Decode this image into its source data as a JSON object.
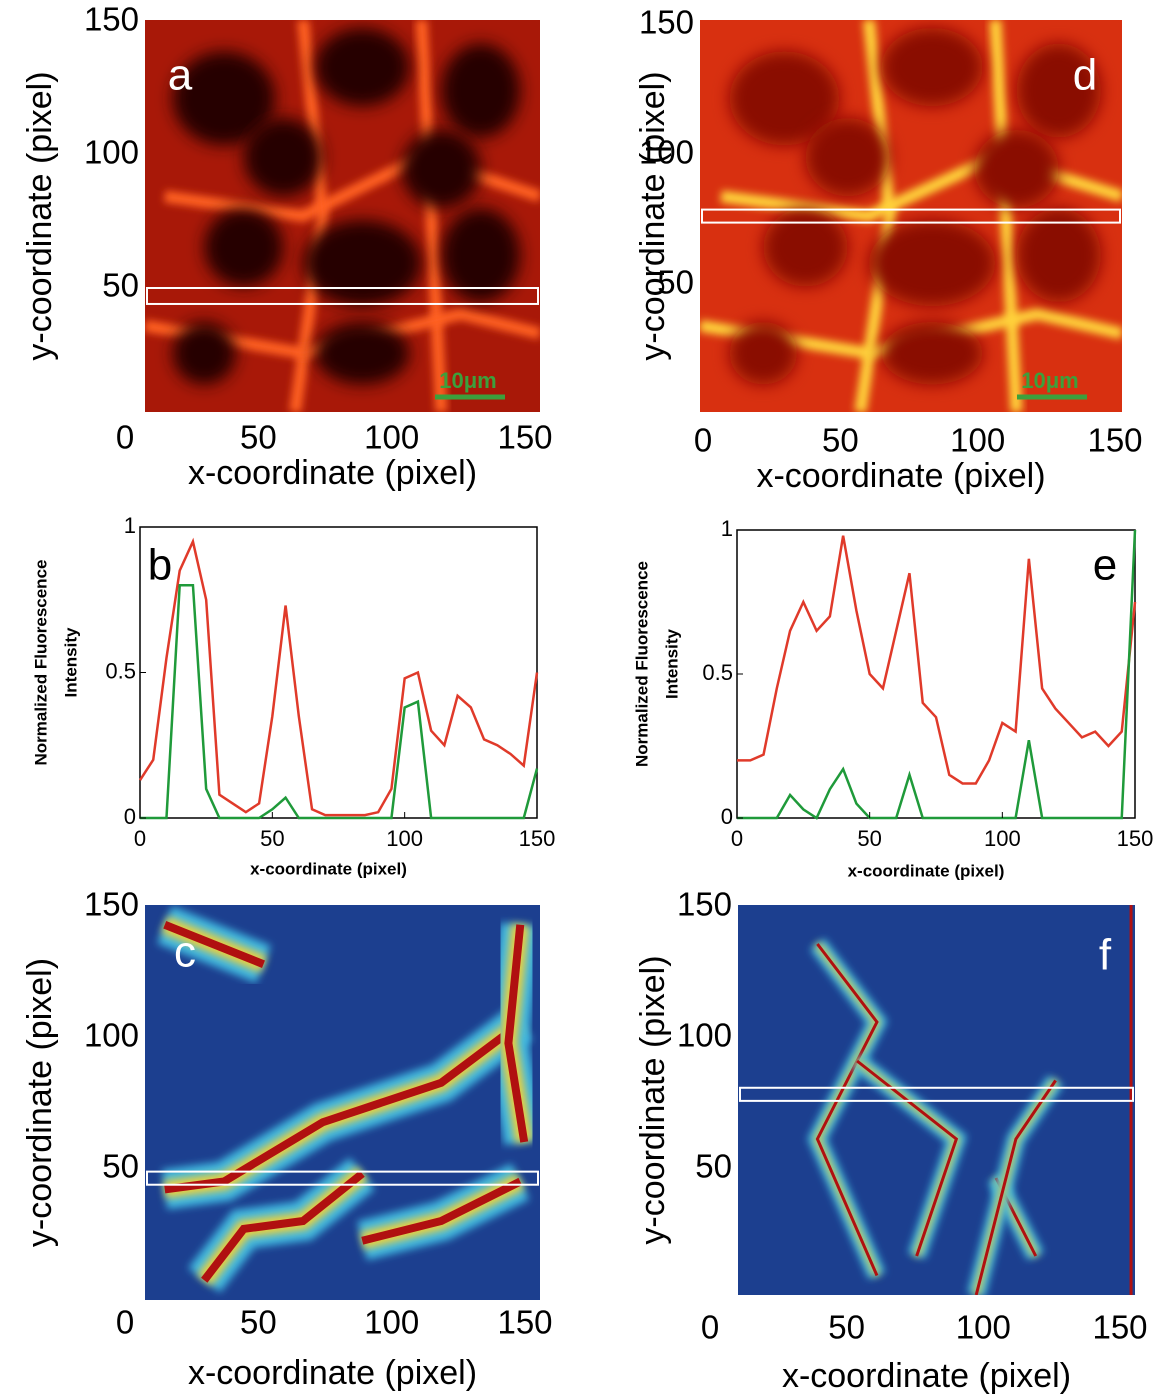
{
  "chart_data": [
    {
      "type": "image",
      "panel_label": "a",
      "colormap": "hot",
      "xlabel": "x-coordinate (pixel)",
      "ylabel": "y-coordinate (pixel)",
      "xlim": [
        0,
        150
      ],
      "ylim": [
        0,
        150
      ],
      "xticks": [
        0,
        50,
        100,
        150
      ],
      "yticks": [
        50,
        100,
        150
      ],
      "highlight_band": [
        44,
        50
      ],
      "scale_bar_label": "10μm",
      "scale_bar_color": "#3ca03c"
    },
    {
      "type": "line",
      "panel_label": "b",
      "xlabel": "x-coordinate (pixel)",
      "ylabel": [
        "Normalized Fluorescence",
        "Intensity"
      ],
      "xlim": [
        0,
        150
      ],
      "ylim": [
        0,
        1
      ],
      "xticks": [
        0,
        50,
        100,
        150
      ],
      "yticks": [
        0,
        0.5,
        1
      ],
      "x": [
        0,
        5,
        10,
        15,
        20,
        25,
        30,
        35,
        40,
        45,
        50,
        55,
        60,
        65,
        70,
        75,
        80,
        85,
        90,
        95,
        100,
        105,
        110,
        115,
        120,
        125,
        130,
        135,
        140,
        145,
        150
      ],
      "series": [
        {
          "color": "#e03a2a",
          "values": [
            0.13,
            0.2,
            0.55,
            0.85,
            0.95,
            0.75,
            0.08,
            0.05,
            0.02,
            0.05,
            0.35,
            0.73,
            0.35,
            0.03,
            0.01,
            0.01,
            0.01,
            0.01,
            0.02,
            0.1,
            0.48,
            0.5,
            0.3,
            0.25,
            0.42,
            0.38,
            0.27,
            0.25,
            0.22,
            0.18,
            0.5
          ]
        },
        {
          "color": "#1f9a3a",
          "values": [
            0,
            0,
            0,
            0.8,
            0.8,
            0.1,
            0,
            0,
            0,
            0,
            0.03,
            0.07,
            0,
            0,
            0,
            0,
            0,
            0,
            0,
            0,
            0.38,
            0.4,
            0,
            0,
            0,
            0,
            0,
            0,
            0,
            0,
            0.17
          ]
        }
      ]
    },
    {
      "type": "image",
      "panel_label": "c",
      "colormap": "jet",
      "xlabel": "x-coordinate (pixel)",
      "ylabel": "y-coordinate (pixel)",
      "xlim": [
        0,
        150
      ],
      "ylim": [
        0,
        150
      ],
      "xticks": [
        0,
        50,
        100,
        150
      ],
      "yticks": [
        50,
        100,
        150
      ],
      "highlight_band": [
        44,
        49
      ]
    },
    {
      "type": "image",
      "panel_label": "d",
      "colormap": "hot",
      "xlabel": "x-coordinate (pixel)",
      "ylabel": "y-coordinate (pixel)",
      "xlim": [
        0,
        150
      ],
      "ylim": [
        0,
        150
      ],
      "xticks": [
        0,
        50,
        100,
        150
      ],
      "yticks": [
        50,
        100,
        150
      ],
      "highlight_band": [
        74,
        79
      ],
      "scale_bar_label": "10μm",
      "scale_bar_color": "#3ca03c"
    },
    {
      "type": "line",
      "panel_label": "e",
      "xlabel": "x-coordinate (pixel)",
      "ylabel": [
        "Normalized Fluorescence",
        "Intensity"
      ],
      "xlim": [
        0,
        150
      ],
      "ylim": [
        0,
        1
      ],
      "xticks": [
        0,
        50,
        100,
        150
      ],
      "yticks": [
        0,
        0.5,
        1
      ],
      "x": [
        0,
        5,
        10,
        15,
        20,
        25,
        30,
        35,
        40,
        45,
        50,
        55,
        60,
        65,
        70,
        75,
        80,
        85,
        90,
        95,
        100,
        105,
        110,
        115,
        120,
        125,
        130,
        135,
        140,
        145,
        150
      ],
      "series": [
        {
          "color": "#e03a2a",
          "values": [
            0.2,
            0.2,
            0.22,
            0.45,
            0.65,
            0.75,
            0.65,
            0.7,
            0.98,
            0.72,
            0.5,
            0.45,
            0.65,
            0.85,
            0.4,
            0.35,
            0.15,
            0.12,
            0.12,
            0.2,
            0.33,
            0.3,
            0.9,
            0.45,
            0.38,
            0.33,
            0.28,
            0.3,
            0.25,
            0.3,
            0.75
          ]
        },
        {
          "color": "#1f9a3a",
          "values": [
            0,
            0,
            0,
            0,
            0.08,
            0.03,
            0,
            0.1,
            0.17,
            0.05,
            0,
            0,
            0,
            0.15,
            0,
            0,
            0,
            0,
            0,
            0,
            0,
            0,
            0.27,
            0,
            0,
            0,
            0,
            0,
            0,
            0,
            1
          ]
        }
      ]
    },
    {
      "type": "image",
      "panel_label": "f",
      "colormap": "jet",
      "xlabel": "x-coordinate (pixel)",
      "ylabel": "y-coordinate (pixel)",
      "xlim": [
        0,
        150
      ],
      "ylim": [
        0,
        150
      ],
      "xticks": [
        0,
        50,
        100,
        150
      ],
      "yticks": [
        50,
        100,
        150
      ],
      "highlight_band": [
        76,
        81
      ]
    }
  ]
}
